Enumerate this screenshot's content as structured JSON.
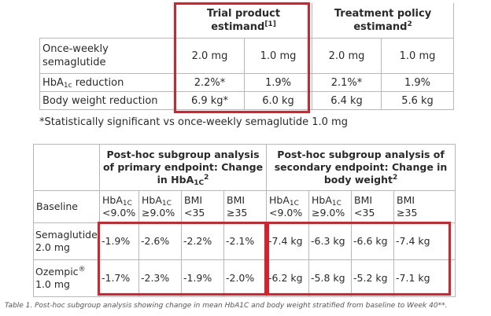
{
  "table1": {
    "header_trial": "Trial product estimand",
    "header_trial_ref": "[1]",
    "header_policy": "Treatment policy estimand",
    "header_policy_ref": "2",
    "rows": [
      {
        "label": "Once-weekly semaglutide",
        "label_sub": "",
        "label_rest": "",
        "v1": "2.0 mg",
        "v2": "1.0 mg",
        "v3": "2.0 mg",
        "v4": "1.0 mg"
      },
      {
        "label": "HbA",
        "label_sub": "1c",
        "label_rest": " reduction",
        "v1": "2.2%*",
        "v2": "1.9%",
        "v3": "2.1%*",
        "v4": "1.9%"
      },
      {
        "label": "Body weight reduction",
        "label_sub": "",
        "label_rest": "",
        "v1": "6.9 kg*",
        "v2": "6.0 kg",
        "v3": "6.4 kg",
        "v4": "5.6 kg"
      }
    ]
  },
  "footnote": "*Statistically significant vs once-weekly semaglutide 1.0 mg",
  "table2": {
    "header_primary": "Post-hoc subgroup analysis of primary endpoint: Change in HbA",
    "header_primary_sub": "1C",
    "header_primary_sup": "2",
    "header_secondary": "Post-hoc subgroup analysis of secondary endpoint: Change in body weight",
    "header_secondary_sup": "2",
    "baseline_label": "Baseline",
    "baseline_cols": [
      {
        "top": "HbA",
        "sub": "1C",
        "bottom": "<9.0%"
      },
      {
        "top": "HbA",
        "sub": "1C",
        "bottom": "≥9.0%"
      },
      {
        "top": "BMI",
        "sub": "",
        "bottom": "<35"
      },
      {
        "top": "BMI",
        "sub": "",
        "bottom": "≥35"
      },
      {
        "top": "HbA",
        "sub": "1C",
        "bottom": "<9.0%"
      },
      {
        "top": "HbA",
        "sub": "1C",
        "bottom": "≥9.0%"
      },
      {
        "top": "BMI",
        "sub": "",
        "bottom": "<35"
      },
      {
        "top": "BMI",
        "sub": "",
        "bottom": "≥35"
      }
    ],
    "rows": [
      {
        "drug": "Semaglutide",
        "drug_sup": "",
        "dose": "2.0 mg",
        "values": [
          "-1.9%",
          "-2.6%",
          "-2.2%",
          "-2.1%",
          "-7.4 kg",
          "-6.3 kg",
          "-6.6 kg",
          "-7.4 kg"
        ]
      },
      {
        "drug": "Ozempic",
        "drug_sup": "®",
        "dose": "1.0 mg",
        "values": [
          "-1.7%",
          "-2.3%",
          "-1.9%",
          "-2.0%",
          "-6.2 kg",
          "-5.8 kg",
          "-5.2 kg",
          "-7.1 kg"
        ]
      }
    ]
  },
  "caption": "Table 1. Post-hoc subgroup analysis showing change in mean HbA1C and body weight stratified from baseline to Week 40**.",
  "colors": {
    "highlight": "#d9212c",
    "border": "#b8b8b8"
  }
}
